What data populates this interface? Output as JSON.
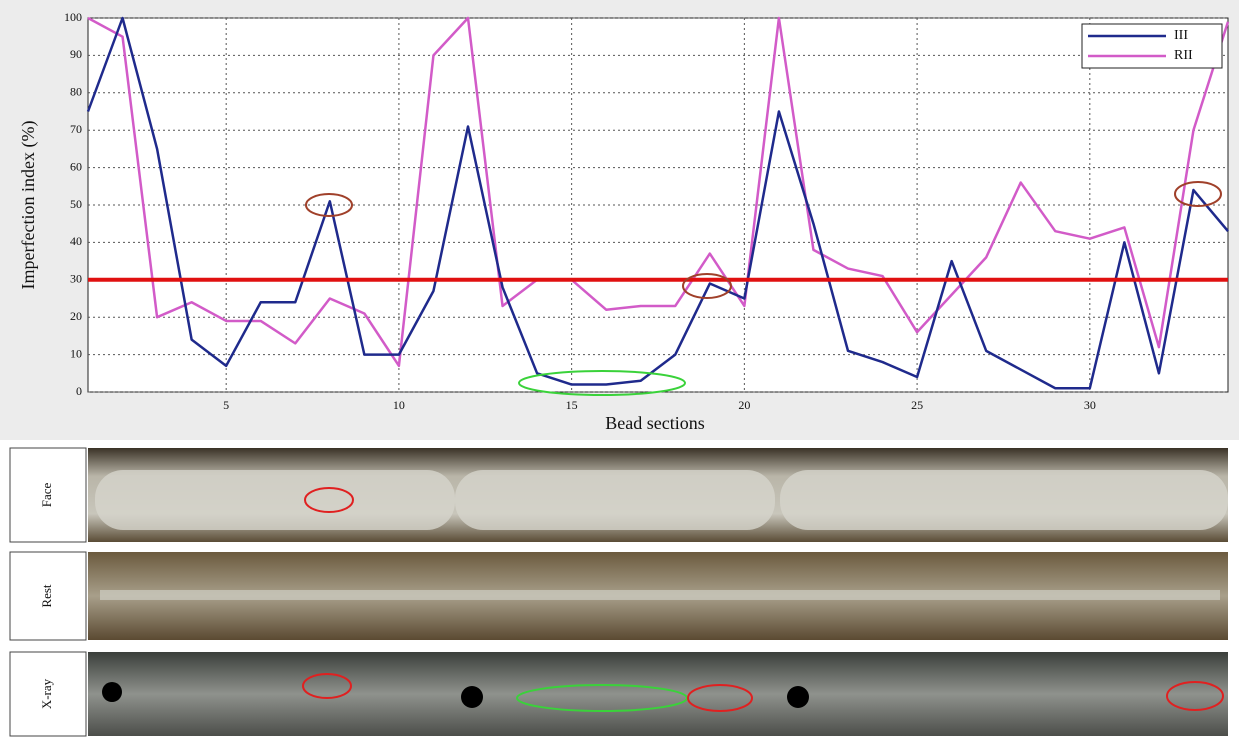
{
  "chart_data": {
    "type": "line",
    "x_label": "Bead sections",
    "y_label": "Imperfection index (%)",
    "x": [
      1,
      2,
      3,
      4,
      5,
      6,
      7,
      8,
      9,
      10,
      11,
      12,
      13,
      14,
      15,
      16,
      17,
      18,
      19,
      20,
      21,
      22,
      23,
      24,
      25,
      26,
      27,
      28,
      29,
      30,
      31,
      32,
      33,
      34
    ],
    "series": [
      {
        "name": "III",
        "color": "#1f2a8c",
        "values": [
          75,
          100,
          65,
          14,
          7,
          24,
          24,
          51,
          10,
          10,
          27,
          71,
          28,
          5,
          2,
          2,
          3,
          10,
          29,
          25,
          75,
          45,
          11,
          8,
          4,
          35,
          11,
          6,
          1,
          1,
          40,
          5,
          54,
          43
        ]
      },
      {
        "name": "RII",
        "color": "#d25bc8",
        "values": [
          100,
          95,
          20,
          24,
          19,
          19,
          13,
          25,
          21,
          7,
          90,
          100,
          23,
          30,
          30,
          22,
          23,
          23,
          37,
          23,
          100,
          38,
          33,
          31,
          16,
          26,
          36,
          56,
          43,
          41,
          44,
          12,
          70,
          99
        ]
      }
    ],
    "threshold": 30,
    "threshold_color": "#e01010",
    "xlim": [
      1,
      34
    ],
    "ylim": [
      0,
      100
    ],
    "xticks": [
      5,
      10,
      15,
      20,
      25,
      30
    ],
    "yticks": [
      0,
      10,
      20,
      30,
      40,
      50,
      60,
      70,
      80,
      90,
      100
    ],
    "grid": true,
    "legend": "upper right",
    "panels": [
      "Face",
      "Rest",
      "X-ray"
    ]
  }
}
